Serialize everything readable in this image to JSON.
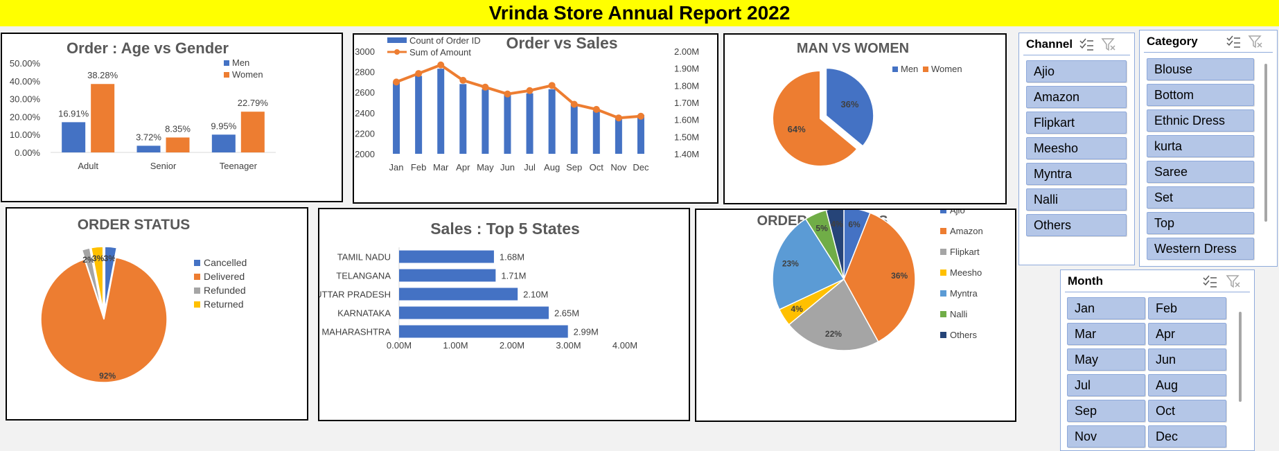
{
  "banner": {
    "title": "Vrinda Store Annual Report 2022"
  },
  "colors": {
    "blue": "#4472c4",
    "orange": "#ed7d31",
    "gray": "#a5a5a5",
    "gold": "#ffc000",
    "lightblue": "#5b9bd5",
    "green": "#70ad47",
    "navy": "#264478",
    "banner": "#ffff00",
    "slicerButton": "#b4c6e7"
  },
  "chart_data": [
    {
      "id": "age_gender",
      "type": "bar",
      "title": "Order  : Age vs Gender",
      "categories": [
        "Adult",
        "Senior",
        "Teenager"
      ],
      "series": [
        {
          "name": "Men",
          "values": [
            16.91,
            3.72,
            9.95
          ],
          "labels": [
            "16.91%",
            "3.72%",
            "9.95%"
          ]
        },
        {
          "name": "Women",
          "values": [
            38.28,
            8.35,
            22.79
          ],
          "labels": [
            "38.28%",
            "8.35%",
            "22.79%"
          ]
        }
      ],
      "yticks": [
        "0.00%",
        "10.00%",
        "20.00%",
        "30.00%",
        "40.00%",
        "50.00%"
      ],
      "ylim": [
        0,
        50
      ],
      "legend": "top-right",
      "grid": false
    },
    {
      "id": "order_sales",
      "type": "bar+line",
      "title": "Order vs Sales",
      "categories": [
        "Jan",
        "Feb",
        "Mar",
        "Apr",
        "May",
        "Jun",
        "Jul",
        "Aug",
        "Sep",
        "Oct",
        "Nov",
        "Dec"
      ],
      "series": [
        {
          "name": "Count of Order ID",
          "values": [
            2700,
            2760,
            2830,
            2680,
            2630,
            2590,
            2590,
            2630,
            2480,
            2420,
            2360,
            2380
          ]
        },
        {
          "name": "Sum of Amount",
          "values": [
            1.82,
            1.87,
            1.92,
            1.83,
            1.79,
            1.75,
            1.77,
            1.8,
            1.69,
            1.66,
            1.61,
            1.62
          ]
        }
      ],
      "yticks": [
        "2000",
        "2200",
        "2400",
        "2600",
        "2800",
        "3000"
      ],
      "ylim": [
        2000,
        3000
      ],
      "y2ticks": [
        "1.40M",
        "1.50M",
        "1.60M",
        "1.70M",
        "1.80M",
        "1.90M",
        "2.00M"
      ],
      "y2lim": [
        1.4,
        2.0
      ],
      "legend": "top-left",
      "grid": false
    },
    {
      "id": "man_women",
      "type": "pie",
      "title": "MAN VS WOMEN",
      "slices": [
        {
          "name": "Men",
          "value": 36,
          "label": "36%"
        },
        {
          "name": "Women",
          "value": 64,
          "label": "64%"
        }
      ],
      "legend": "top-right"
    },
    {
      "id": "order_status",
      "type": "pie",
      "title": "ORDER STATUS",
      "slices": [
        {
          "name": "Cancelled",
          "value": 3,
          "label": "3%"
        },
        {
          "name": "Delivered",
          "value": 92,
          "label": "92%"
        },
        {
          "name": "Refunded",
          "value": 2,
          "label": "2%"
        },
        {
          "name": "Returned",
          "value": 3,
          "label": "3%"
        }
      ],
      "legend": "right"
    },
    {
      "id": "top_states",
      "type": "bar",
      "orientation": "horizontal",
      "title": "Sales : Top 5 States",
      "categories": [
        "TAMIL NADU",
        "TELANGANA",
        "UTTAR PRADESH",
        "KARNATAKA",
        "MAHARASHTRA"
      ],
      "values": [
        1.68,
        1.71,
        2.1,
        2.65,
        2.99
      ],
      "labels": [
        "1.68M",
        "1.71M",
        "2.10M",
        "2.65M",
        "2.99M"
      ],
      "xticks": [
        "0.00M",
        "1.00M",
        "2.00M",
        "3.00M",
        "4.00M"
      ],
      "xlim": [
        0,
        4
      ]
    },
    {
      "id": "order_channels",
      "type": "pie",
      "title": "ORDER CHANNELS",
      "slices": [
        {
          "name": "Ajio",
          "value": 6,
          "label": "6%"
        },
        {
          "name": "Amazon",
          "value": 36,
          "label": "36%"
        },
        {
          "name": "Flipkart",
          "value": 22,
          "label": "22%"
        },
        {
          "name": "Meesho",
          "value": 4,
          "label": "4%"
        },
        {
          "name": "Myntra",
          "value": 23,
          "label": "23%"
        },
        {
          "name": "Nalli",
          "value": 5,
          "label": "5%"
        },
        {
          "name": "Others",
          "value": 4,
          "label": "4%"
        }
      ],
      "legend": "right"
    }
  ],
  "slicers": {
    "channel": {
      "title": "Channel",
      "items": [
        "Ajio",
        "Amazon",
        "Flipkart",
        "Meesho",
        "Myntra",
        "Nalli",
        "Others"
      ]
    },
    "category": {
      "title": "Category",
      "items": [
        "Blouse",
        "Bottom",
        "Ethnic Dress",
        "kurta",
        "Saree",
        "Set",
        "Top",
        "Western Dress"
      ]
    },
    "month": {
      "title": "Month",
      "items": [
        "Jan",
        "Feb",
        "Mar",
        "Apr",
        "May",
        "Jun",
        "Jul",
        "Aug",
        "Sep",
        "Oct",
        "Nov",
        "Dec"
      ]
    }
  }
}
